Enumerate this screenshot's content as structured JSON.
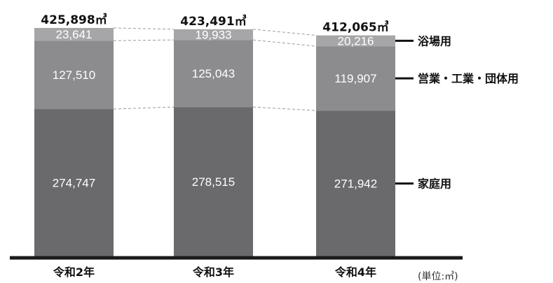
{
  "chart_data": {
    "type": "bar",
    "stacked": true,
    "categories": [
      "令和2年",
      "令和3年",
      "令和4年"
    ],
    "series": [
      {
        "name": "家庭用",
        "values": [
          274747,
          278515,
          271942
        ],
        "display": [
          "274,747",
          "278,515",
          "271,942"
        ],
        "color": "#6a6a6c"
      },
      {
        "name": "営業・工業・団体用",
        "values": [
          127510,
          125043,
          119907
        ],
        "display": [
          "127,510",
          "125,043",
          "119,907"
        ],
        "color": "#8c8c8e"
      },
      {
        "name": "浴場用",
        "values": [
          23641,
          19933,
          20216
        ],
        "display": [
          "23,641",
          "19,933",
          "20,216"
        ],
        "color": "#a6a6a8"
      }
    ],
    "totals": [
      425898,
      423491,
      412065
    ],
    "total_labels": [
      "425,898㎥",
      "423,491㎥",
      "412,065㎥"
    ],
    "unit": "(単位:㎥)",
    "legend_placement": "right",
    "connector_lines": true,
    "ylim": [
      0,
      425898
    ]
  }
}
